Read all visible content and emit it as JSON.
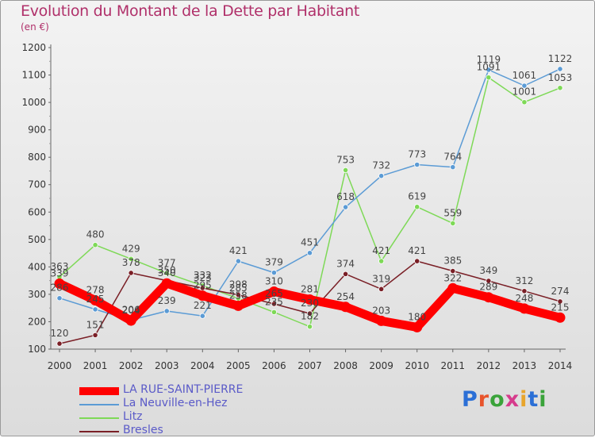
{
  "title": "Evolution du Montant de la Dette par Habitant",
  "subtitle": "(en €)",
  "brand": "Proxiti",
  "brand_colors": [
    "#2b6fd6",
    "#e8542c",
    "#3aa33a",
    "#d63b8c",
    "#e8a52c",
    "#2b6fd6",
    "#3aa33a"
  ],
  "chart_data": {
    "type": "line",
    "title": "Evolution du Montant de la Dette par Habitant",
    "subtitle": "(en €)",
    "xlabel": "",
    "ylabel": "",
    "x": [
      "2000",
      "2001",
      "2002",
      "2003",
      "2004",
      "2005",
      "2006",
      "2007",
      "2008",
      "2009",
      "2010",
      "2011",
      "2012",
      "2013",
      "2014"
    ],
    "ylim": [
      100,
      1200
    ],
    "yticks": [
      100,
      200,
      300,
      400,
      500,
      600,
      700,
      800,
      900,
      1000,
      1100,
      1200
    ],
    "grid": false,
    "legend_position": "bottom-left",
    "series": [
      {
        "name": "LA RUE-SAINT-PIERRE",
        "color": "#ff0000",
        "values": [
          339,
          278,
          204,
          340,
          295,
          258,
          310,
          281,
          254,
          203,
          180,
          322,
          289,
          248,
          215
        ],
        "labels": [
          "339",
          "278",
          "204",
          "340",
          "295",
          "258",
          "310",
          "281",
          "254",
          "203",
          "180",
          "322",
          "289",
          "248",
          "215"
        ]
      },
      {
        "name": "La Neuville-en-Hez",
        "color": "#5b9bd5",
        "values": [
          286,
          245,
          206,
          239,
          221,
          421,
          379,
          451,
          618,
          732,
          773,
          764,
          1119,
          1061,
          1122
        ],
        "labels": [
          "286",
          "245",
          "206",
          "239",
          "221",
          "421",
          "379",
          "451",
          "618",
          "732",
          "773",
          "764",
          "1119",
          "1061",
          "1122"
        ]
      },
      {
        "name": "Litz",
        "color": "#7ed957",
        "values": [
          363,
          480,
          429,
          377,
          332,
          285,
          235,
          182,
          753,
          421,
          619,
          559,
          1091,
          1001,
          1053
        ],
        "labels": [
          "363",
          "480",
          "429",
          "377",
          "332",
          "285",
          "235",
          "182",
          "753",
          "421",
          "619",
          "559",
          "1091",
          "1001",
          "1053"
        ]
      },
      {
        "name": "Bresles",
        "color": "#7a1f26",
        "values": [
          120,
          151,
          378,
          350,
          323,
          298,
          265,
          230,
          374,
          319,
          421,
          385,
          349,
          312,
          274
        ],
        "labels": [
          "120",
          "151",
          "378",
          "350",
          "323",
          "298",
          "265",
          "230",
          "374",
          "319",
          "421",
          "385",
          "349",
          "312",
          "274"
        ]
      }
    ]
  }
}
